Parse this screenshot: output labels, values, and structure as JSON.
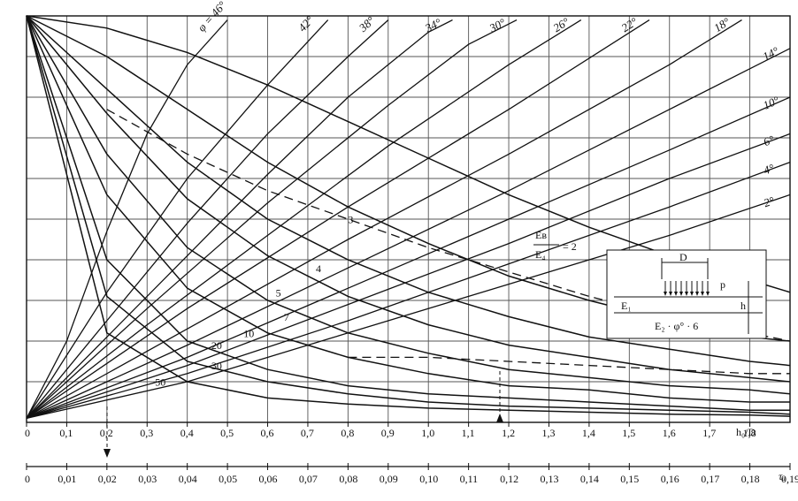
{
  "chart_data": {
    "type": "line",
    "title": "",
    "xlabel": "h₀/D",
    "x2label": "τₐ",
    "xlim": [
      0,
      1.9
    ],
    "x2lim": [
      0,
      0.2
    ],
    "ylim": [
      0,
      1
    ],
    "grid": true,
    "x_ticks": [
      "0",
      "0,1",
      "0,2",
      "0,3",
      "0,4",
      "0,5",
      "0,6",
      "0,7",
      "0,8",
      "0,9",
      "1,0",
      "1,1",
      "1,2",
      "1,3",
      "1,4",
      "1,5",
      "1,6",
      "1,7",
      "1,8"
    ],
    "x2_ticks": [
      "0",
      "0,01",
      "0,02",
      "0,03",
      "0,04",
      "0,05",
      "0,06",
      "0,07",
      "0,08",
      "0,09",
      "0,10",
      "0,11",
      "0,12",
      "0,13",
      "0,14",
      "0,15",
      "0,16",
      "0,17",
      "0,18",
      "0,19"
    ],
    "phi_series": [
      {
        "label": "φ = 46°",
        "x": [
          0,
          0.1,
          0.2,
          0.3,
          0.4,
          0.5
        ],
        "y": [
          0.01,
          0.2,
          0.47,
          0.71,
          0.88,
          0.99
        ]
      },
      {
        "label": "42°",
        "x": [
          0,
          0.2,
          0.4,
          0.6,
          0.75
        ],
        "y": [
          0.01,
          0.32,
          0.6,
          0.83,
          0.99
        ]
      },
      {
        "label": "38°",
        "x": [
          0,
          0.2,
          0.4,
          0.6,
          0.8,
          0.9
        ],
        "y": [
          0.01,
          0.25,
          0.49,
          0.71,
          0.9,
          0.99
        ]
      },
      {
        "label": "34°",
        "x": [
          0,
          0.2,
          0.4,
          0.6,
          0.8,
          1.0,
          1.06
        ],
        "y": [
          0.01,
          0.21,
          0.41,
          0.61,
          0.8,
          0.96,
          0.99
        ]
      },
      {
        "label": "30°",
        "x": [
          0,
          0.3,
          0.6,
          0.9,
          1.1,
          1.22
        ],
        "y": [
          0.01,
          0.28,
          0.54,
          0.78,
          0.93,
          0.99
        ]
      },
      {
        "label": "26°",
        "x": [
          0,
          0.3,
          0.6,
          0.9,
          1.2,
          1.38
        ],
        "y": [
          0.01,
          0.24,
          0.46,
          0.68,
          0.88,
          0.99
        ]
      },
      {
        "label": "22°",
        "x": [
          0,
          0.4,
          0.8,
          1.2,
          1.55
        ],
        "y": [
          0.01,
          0.28,
          0.53,
          0.77,
          0.99
        ]
      },
      {
        "label": "18°",
        "x": [
          0,
          0.4,
          0.8,
          1.2,
          1.6,
          1.78
        ],
        "y": [
          0.01,
          0.23,
          0.45,
          0.66,
          0.88,
          0.99
        ]
      },
      {
        "label": "14°",
        "x": [
          0,
          0.4,
          0.8,
          1.2,
          1.6,
          1.9
        ],
        "y": [
          0.01,
          0.19,
          0.38,
          0.57,
          0.77,
          0.92
        ]
      },
      {
        "label": "10°",
        "x": [
          0,
          0.4,
          0.8,
          1.2,
          1.6,
          1.9
        ],
        "y": [
          0.01,
          0.16,
          0.33,
          0.5,
          0.67,
          0.8
        ]
      },
      {
        "label": "6°",
        "x": [
          0,
          0.4,
          0.8,
          1.2,
          1.6,
          1.9
        ],
        "y": [
          0.01,
          0.14,
          0.29,
          0.44,
          0.6,
          0.71
        ]
      },
      {
        "label": "4°",
        "x": [
          0,
          0.4,
          0.8,
          1.2,
          1.6,
          1.9
        ],
        "y": [
          0.01,
          0.12,
          0.25,
          0.39,
          0.53,
          0.64
        ]
      },
      {
        "label": "2°",
        "x": [
          0,
          0.4,
          0.8,
          1.2,
          1.6,
          1.9
        ],
        "y": [
          0.01,
          0.1,
          0.22,
          0.34,
          0.46,
          0.56
        ]
      }
    ],
    "ratio_series": [
      {
        "label": "Eв/E₄ = 2",
        "x": [
          0,
          0.2,
          0.4,
          0.6,
          0.8,
          1.0,
          1.2,
          1.4,
          1.6,
          1.8,
          1.9
        ],
        "y": [
          1.0,
          0.97,
          0.91,
          0.83,
          0.74,
          0.65,
          0.56,
          0.48,
          0.41,
          0.35,
          0.32
        ]
      },
      {
        "label": "3",
        "x": [
          0,
          0.2,
          0.4,
          0.6,
          0.8,
          1.0,
          1.2,
          1.4,
          1.6,
          1.8,
          1.9
        ],
        "y": [
          1.0,
          0.9,
          0.77,
          0.64,
          0.53,
          0.44,
          0.36,
          0.3,
          0.25,
          0.21,
          0.2
        ]
      },
      {
        "label": "4",
        "x": [
          0,
          0.2,
          0.4,
          0.6,
          0.8,
          1.0,
          1.2,
          1.4,
          1.6,
          1.8,
          1.9
        ],
        "y": [
          1.0,
          0.82,
          0.64,
          0.5,
          0.4,
          0.32,
          0.26,
          0.21,
          0.18,
          0.15,
          0.14
        ]
      },
      {
        "label": "5",
        "x": [
          0,
          0.2,
          0.4,
          0.6,
          0.8,
          1.0,
          1.2,
          1.4,
          1.6,
          1.8,
          1.9
        ],
        "y": [
          1.0,
          0.76,
          0.55,
          0.41,
          0.31,
          0.24,
          0.19,
          0.16,
          0.13,
          0.11,
          0.1
        ]
      },
      {
        "label": "7",
        "x": [
          0,
          0.2,
          0.4,
          0.6,
          0.8,
          1.0,
          1.2,
          1.4,
          1.6,
          1.8,
          1.9
        ],
        "y": [
          1.0,
          0.66,
          0.43,
          0.3,
          0.22,
          0.17,
          0.13,
          0.11,
          0.09,
          0.08,
          0.07
        ]
      },
      {
        "label": "10",
        "x": [
          0,
          0.2,
          0.4,
          0.6,
          0.8,
          1.0,
          1.2,
          1.4,
          1.6,
          1.8,
          1.9
        ],
        "y": [
          1.0,
          0.56,
          0.33,
          0.22,
          0.16,
          0.12,
          0.09,
          0.08,
          0.06,
          0.05,
          0.05
        ]
      },
      {
        "label": "20",
        "x": [
          0,
          0.2,
          0.4,
          0.6,
          0.8,
          1.0,
          1.2,
          1.4,
          1.6,
          1.8,
          1.9
        ],
        "y": [
          1.0,
          0.4,
          0.2,
          0.13,
          0.09,
          0.07,
          0.06,
          0.05,
          0.04,
          0.03,
          0.03
        ]
      },
      {
        "label": "30",
        "x": [
          0,
          0.2,
          0.4,
          0.6,
          0.8,
          1.0,
          1.2,
          1.4,
          1.6,
          1.8,
          1.9
        ],
        "y": [
          1.0,
          0.31,
          0.15,
          0.1,
          0.07,
          0.05,
          0.04,
          0.035,
          0.03,
          0.025,
          0.02
        ]
      },
      {
        "label": "50",
        "x": [
          0,
          0.2,
          0.4,
          0.6,
          0.8,
          1.0,
          1.2,
          1.4,
          1.6,
          1.8,
          1.9
        ],
        "y": [
          1.0,
          0.22,
          0.1,
          0.06,
          0.045,
          0.035,
          0.03,
          0.025,
          0.02,
          0.018,
          0.015
        ]
      }
    ],
    "dashed_series": [
      {
        "x": [
          0.2,
          0.4,
          0.6,
          0.8,
          1.0,
          1.2,
          1.4,
          1.6,
          1.8,
          1.9
        ],
        "y": [
          0.77,
          0.66,
          0.57,
          0.5,
          0.43,
          0.37,
          0.31,
          0.26,
          0.22,
          0.2
        ]
      },
      {
        "x": [
          0.8,
          1.0,
          1.2,
          1.4,
          1.6,
          1.8,
          1.9
        ],
        "y": [
          0.16,
          0.16,
          0.15,
          0.14,
          0.13,
          0.12,
          0.12
        ]
      }
    ],
    "annotations": {
      "inset": {
        "d": "D",
        "p": "p",
        "h": "h",
        "e1": "E₁",
        "e2": "E₂ · φ° · 6"
      },
      "ratio_numerator": "Eв",
      "ratio_denominator": "E₄",
      "ratio_suffix": "= 2"
    }
  }
}
